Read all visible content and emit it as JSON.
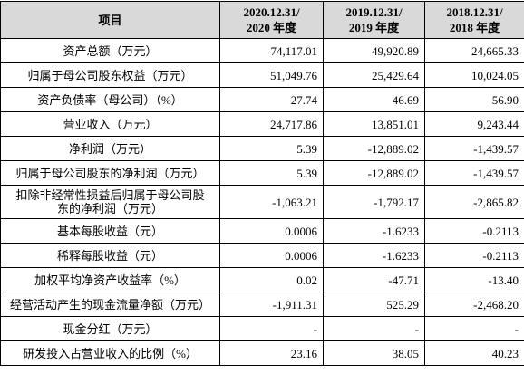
{
  "table": {
    "header": [
      [
        "项目"
      ],
      [
        "2020.12.31/",
        "2020 年度"
      ],
      [
        "2019.12.31/",
        "2019 年度"
      ],
      [
        "2018.12.31/",
        "2018 年度"
      ]
    ],
    "rows": [
      [
        [
          "资产总额（万元）"
        ],
        "74,117.01",
        "49,920.89",
        "24,665.33"
      ],
      [
        [
          "归属于母公司股东权益（万元）"
        ],
        "51,049.76",
        "25,429.64",
        "10,024.05"
      ],
      [
        [
          "资产负债率（母公司）（%）"
        ],
        "27.74",
        "46.69",
        "56.90"
      ],
      [
        [
          "营业收入（万元）"
        ],
        "24,717.86",
        "13,851.01",
        "9,243.44"
      ],
      [
        [
          "净利润（万元）"
        ],
        "5.39",
        "-12,889.02",
        "-1,439.57"
      ],
      [
        [
          "归属于母公司股东的净利润（万元）"
        ],
        "5.39",
        "-12,889.02",
        "-1,439.57"
      ],
      [
        [
          "扣除非经常性损益后归属于母公司股",
          "东的净利润（万元）"
        ],
        "-1,063.21",
        "-1,792.17",
        "-2,865.82"
      ],
      [
        [
          "基本每股收益（元）"
        ],
        "0.0006",
        "-1.6233",
        "-0.2113"
      ],
      [
        [
          "稀释每股收益（元）"
        ],
        "0.0006",
        "-1.6233",
        "-0.2113"
      ],
      [
        [
          "加权平均净资产收益率（%）"
        ],
        "0.02",
        "-47.71",
        "-13.40"
      ],
      [
        [
          "经营活动产生的现金流量净额（万元）"
        ],
        "-1,911.31",
        "525.29",
        "-2,468.20"
      ],
      [
        [
          "现金分红（万元）"
        ],
        "-",
        "-",
        "-"
      ],
      [
        [
          "研发投入占营业收入的比例（%）"
        ],
        "23.16",
        "38.05",
        "40.23"
      ]
    ]
  }
}
